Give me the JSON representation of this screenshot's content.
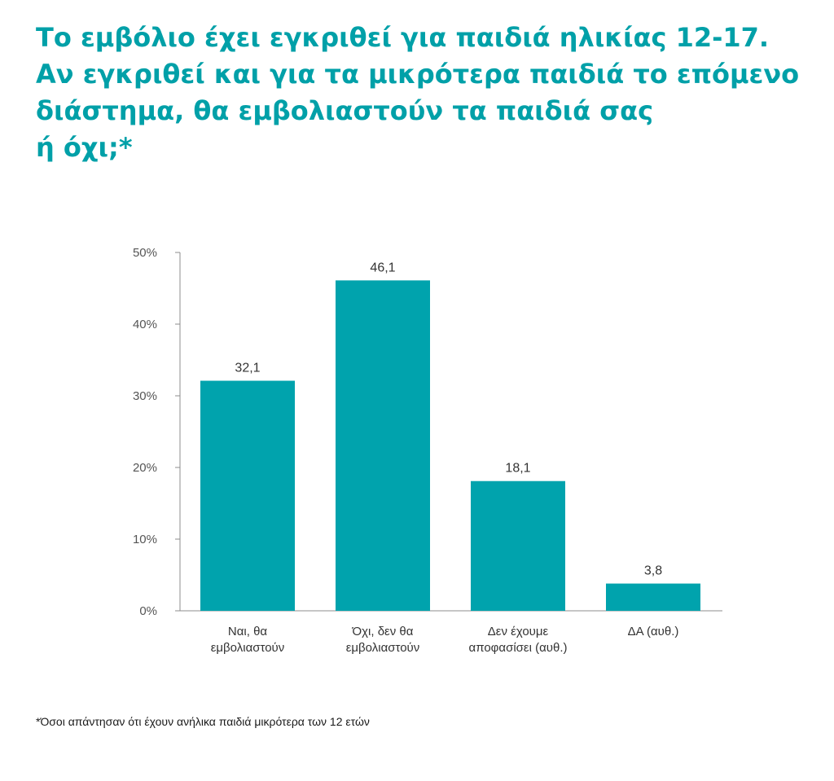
{
  "title_lines": [
    "Το εμβόλιο έχει εγκριθεί για παιδιά ηλικίας 12-17.",
    "Αν εγκριθεί και για τα μικρότερα παιδιά το επόμενο",
    "διάστημα, θα εμβολιαστούν τα παιδιά σας",
    "ή όχι;*"
  ],
  "footnote": "*Όσοι απάντησαν ότι έχουν ανήλικα παιδιά μικρότερα των 12 ετών",
  "colors": {
    "title": "#00a0a8",
    "bar": "#00a3ad",
    "axis": "#8c8c8c",
    "text": "#333333"
  },
  "chart_data": {
    "type": "bar",
    "categories": [
      [
        "Ναι, θα",
        "εμβολιαστούν"
      ],
      [
        "Όχι, δεν θα",
        "εμβολιαστούν"
      ],
      [
        "Δεν έχουμε",
        "αποφασίσει (αυθ.)"
      ],
      [
        "ΔΑ (αυθ.)"
      ]
    ],
    "values": [
      32.1,
      46.1,
      18.1,
      3.8
    ],
    "value_labels": [
      "32,1",
      "46,1",
      "18,1",
      "3,8"
    ],
    "ylim": [
      0,
      50
    ],
    "yticks": [
      0,
      10,
      20,
      30,
      40,
      50
    ],
    "ytick_labels": [
      "0%",
      "10%",
      "20%",
      "30%",
      "40%",
      "50%"
    ],
    "grid": false
  }
}
